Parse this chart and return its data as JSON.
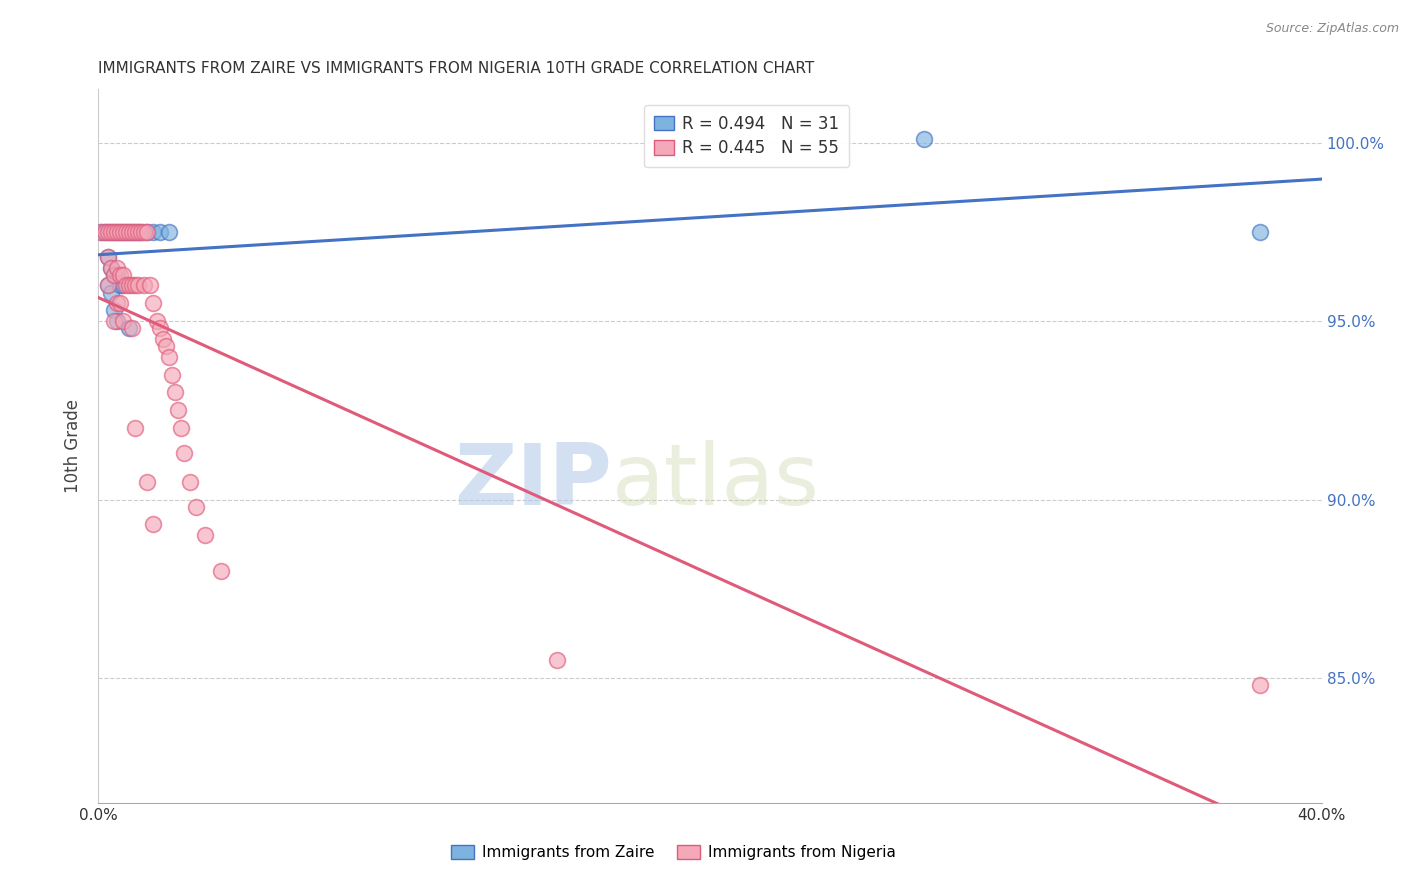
{
  "title": "IMMIGRANTS FROM ZAIRE VS IMMIGRANTS FROM NIGERIA 10TH GRADE CORRELATION CHART",
  "source": "Source: ZipAtlas.com",
  "ylabel": "10th Grade",
  "legend_blue_label": "R = 0.494   N = 31",
  "legend_pink_label": "R = 0.445   N = 55",
  "blue_color": "#7EB3E0",
  "pink_color": "#F4A8B8",
  "blue_line_color": "#4472C4",
  "pink_line_color": "#E05A7A",
  "watermark_zip": "ZIP",
  "watermark_atlas": "atlas",
  "xlim": [
    0.0,
    0.4
  ],
  "ylim": [
    0.815,
    1.015
  ],
  "right_yticks": [
    0.85,
    0.9,
    0.95,
    1.0
  ],
  "right_yticklabels": [
    "85.0%",
    "90.0%",
    "95.0%",
    "100.0%"
  ],
  "zaire_x": [
    0.001,
    0.002,
    0.003,
    0.003,
    0.003,
    0.004,
    0.004,
    0.004,
    0.005,
    0.005,
    0.005,
    0.006,
    0.006,
    0.006,
    0.007,
    0.007,
    0.008,
    0.008,
    0.009,
    0.01,
    0.01,
    0.011,
    0.012,
    0.013,
    0.014,
    0.016,
    0.018,
    0.02,
    0.023,
    0.27,
    0.38
  ],
  "zaire_y": [
    0.975,
    0.975,
    0.975,
    0.968,
    0.96,
    0.975,
    0.965,
    0.958,
    0.975,
    0.963,
    0.953,
    0.975,
    0.963,
    0.95,
    0.975,
    0.96,
    0.975,
    0.96,
    0.975,
    0.975,
    0.948,
    0.975,
    0.975,
    0.975,
    0.975,
    0.975,
    0.975,
    0.975,
    0.975,
    1.001,
    0.975
  ],
  "nigeria_x": [
    0.001,
    0.002,
    0.003,
    0.003,
    0.003,
    0.004,
    0.004,
    0.005,
    0.005,
    0.005,
    0.006,
    0.006,
    0.006,
    0.007,
    0.007,
    0.007,
    0.008,
    0.008,
    0.008,
    0.009,
    0.009,
    0.01,
    0.01,
    0.011,
    0.011,
    0.011,
    0.012,
    0.012,
    0.013,
    0.013,
    0.014,
    0.015,
    0.015,
    0.016,
    0.017,
    0.018,
    0.019,
    0.02,
    0.021,
    0.022,
    0.023,
    0.024,
    0.025,
    0.026,
    0.027,
    0.028,
    0.03,
    0.032,
    0.035,
    0.04,
    0.012,
    0.016,
    0.018,
    0.15,
    0.38
  ],
  "nigeria_y": [
    0.975,
    0.975,
    0.975,
    0.968,
    0.96,
    0.975,
    0.965,
    0.975,
    0.963,
    0.95,
    0.975,
    0.965,
    0.955,
    0.975,
    0.963,
    0.955,
    0.975,
    0.963,
    0.95,
    0.975,
    0.96,
    0.975,
    0.96,
    0.975,
    0.96,
    0.948,
    0.975,
    0.96,
    0.975,
    0.96,
    0.975,
    0.975,
    0.96,
    0.975,
    0.96,
    0.955,
    0.95,
    0.948,
    0.945,
    0.943,
    0.94,
    0.935,
    0.93,
    0.925,
    0.92,
    0.913,
    0.905,
    0.898,
    0.89,
    0.88,
    0.92,
    0.905,
    0.893,
    0.855,
    0.848
  ]
}
